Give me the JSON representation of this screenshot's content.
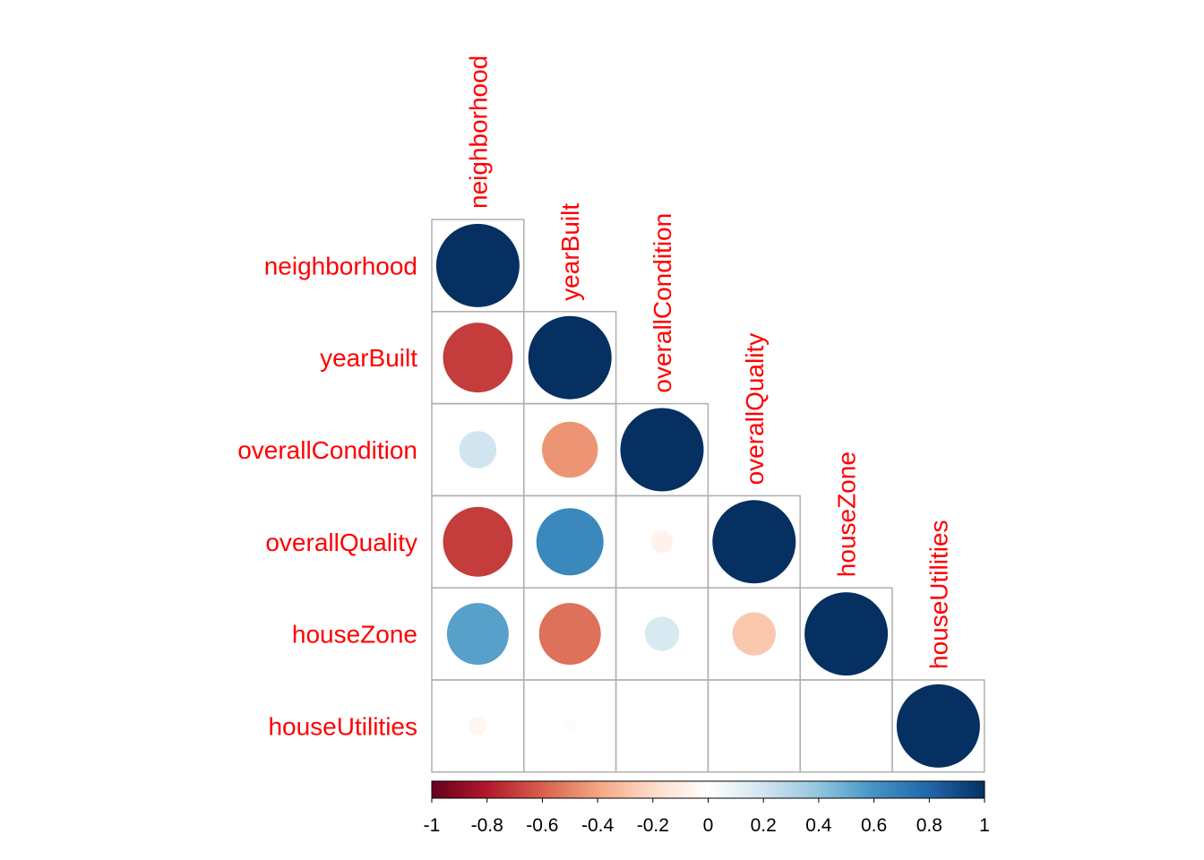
{
  "chart_data": {
    "type": "heatmap",
    "style": "correlation-circle-lower-triangle",
    "variables": [
      "neighborhood",
      "yearBuilt",
      "overallCondition",
      "overallQuality",
      "houseZone",
      "houseUtilities"
    ],
    "matrix": [
      [
        1.0,
        -0.7,
        0.2,
        -0.7,
        0.55,
        -0.05
      ],
      [
        -0.7,
        1.0,
        -0.45,
        0.65,
        -0.55,
        -0.02
      ],
      [
        0.2,
        -0.45,
        1.0,
        -0.07,
        0.17,
        0.0
      ],
      [
        -0.7,
        0.65,
        -0.07,
        1.0,
        -0.27,
        0.0
      ],
      [
        0.55,
        -0.55,
        0.17,
        -0.27,
        1.0,
        0.0
      ],
      [
        -0.05,
        -0.02,
        0.0,
        0.0,
        0.0,
        1.0
      ]
    ],
    "colorbar": {
      "range": [
        -1,
        1
      ],
      "ticks": [
        "-1",
        "-0.8",
        "-0.6",
        "-0.4",
        "-0.2",
        "0",
        "0.2",
        "0.4",
        "0.6",
        "0.8",
        "1"
      ],
      "palette": [
        "#67001f",
        "#b2182b",
        "#d6604d",
        "#f4a582",
        "#fddbc7",
        "#ffffff",
        "#d1e5f0",
        "#92c5de",
        "#4393c3",
        "#2166ac",
        "#053061"
      ]
    },
    "label_color": "#ff0000",
    "grid_color": "#b0b0b0"
  }
}
